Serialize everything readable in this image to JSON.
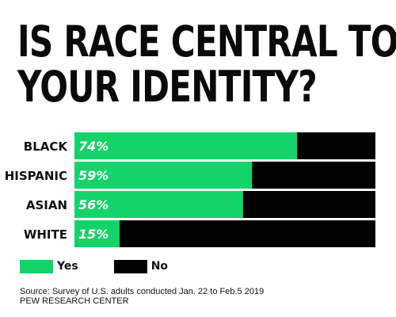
{
  "title_lines": [
    "IS RACE CENTRAL TO",
    "YOUR IDENTITY?"
  ],
  "chart_data": {
    "type": "bar",
    "orientation": "horizontal",
    "stacked": true,
    "categories": [
      "BLACK",
      "HISPANIC",
      "ASIAN",
      "WHITE"
    ],
    "series": [
      {
        "name": "Yes",
        "color": "#13d369",
        "values": [
          74,
          59,
          56,
          15
        ]
      },
      {
        "name": "No",
        "color": "#000000",
        "values": [
          26,
          41,
          44,
          85
        ]
      }
    ],
    "value_labels": [
      "74%",
      "59%",
      "56%",
      "15%"
    ],
    "xlim": [
      0,
      100
    ],
    "grid": false,
    "legend_position": "bottom-left"
  },
  "legend": [
    {
      "label": "Yes",
      "color": "#13d369"
    },
    {
      "label": "No",
      "color": "#000000"
    }
  ],
  "source": {
    "line1": "Source: Survey of U.S. adults conducted Jan. 22 to Feb.5 2019",
    "line2": "PEW RESEARCH CENTER"
  }
}
